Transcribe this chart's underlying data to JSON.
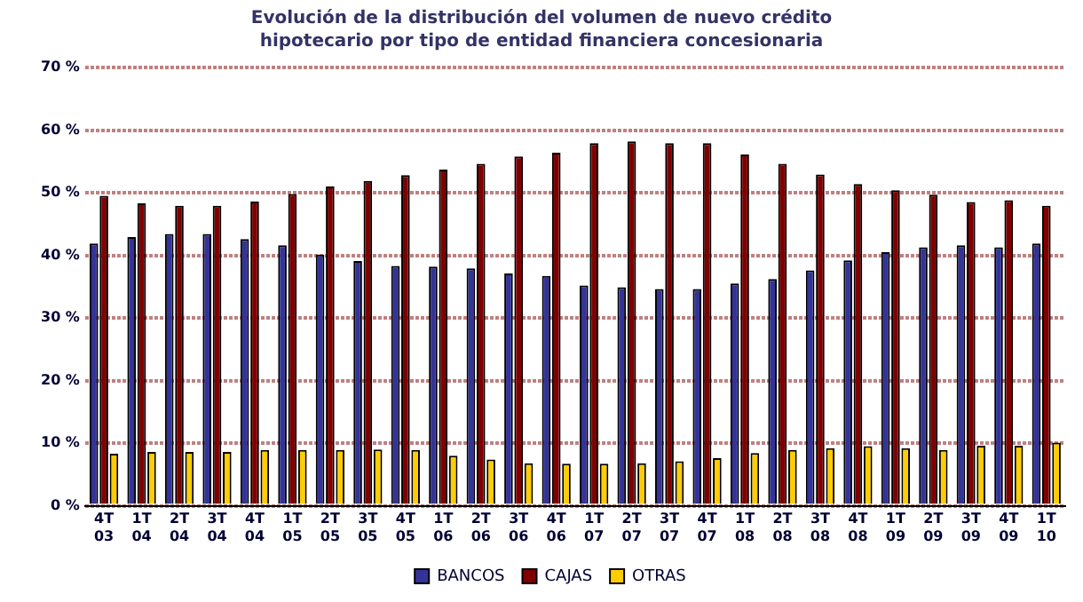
{
  "chart_data": {
    "type": "bar",
    "title": "Evolución de la distribución del volumen de nuevo crédito hipotecario por tipo de entidad financiera concesionaria",
    "categories": [
      "4T 03",
      "1T 04",
      "2T 04",
      "3T 04",
      "4T 04",
      "1T 05",
      "2T 05",
      "3T 05",
      "4T 05",
      "1T 06",
      "2T 06",
      "3T 06",
      "4T 06",
      "1T 07",
      "2T 07",
      "3T 07",
      "4T 07",
      "1T 08",
      "2T 08",
      "3T 08",
      "4T 08",
      "1T 09",
      "2T 09",
      "3T 09",
      "4T 09",
      "1T 10"
    ],
    "series": [
      {
        "name": "BANCOS",
        "color": "#333399",
        "values": [
          41.9,
          42.9,
          43.4,
          43.4,
          42.6,
          41.6,
          40.1,
          39.1,
          38.3,
          38.2,
          37.9,
          37.1,
          36.7,
          35.2,
          34.9,
          34.6,
          34.6,
          35.5,
          36.2,
          37.6,
          39.2,
          40.5,
          41.3,
          41.6,
          41.3,
          41.9
        ]
      },
      {
        "name": "CAJAS",
        "color": "#800000",
        "values": [
          49.5,
          48.3,
          47.9,
          47.9,
          48.6,
          49.8,
          51.0,
          51.9,
          52.8,
          53.7,
          54.6,
          55.8,
          56.4,
          57.9,
          58.2,
          57.9,
          57.9,
          56.1,
          54.6,
          52.9,
          51.4,
          50.4,
          49.7,
          48.5,
          48.8,
          47.9
        ]
      },
      {
        "name": "OTRAS",
        "color": "#ffcc00",
        "values": [
          8.3,
          8.6,
          8.6,
          8.6,
          8.9,
          8.9,
          8.9,
          9.0,
          8.9,
          8.0,
          7.4,
          6.8,
          6.7,
          6.7,
          6.8,
          7.1,
          7.6,
          8.4,
          8.9,
          9.2,
          9.5,
          9.2,
          8.9,
          9.6,
          9.6,
          10.1
        ]
      }
    ],
    "ylim": [
      0,
      70
    ],
    "yticks": [
      {
        "value": 0,
        "label": "0 %"
      },
      {
        "value": 10,
        "label": "10 %"
      },
      {
        "value": 20,
        "label": "20 %"
      },
      {
        "value": 30,
        "label": "30 %"
      },
      {
        "value": 40,
        "label": "40 %"
      },
      {
        "value": 50,
        "label": "50 %"
      },
      {
        "value": 60,
        "label": "60 %"
      },
      {
        "value": 70,
        "label": "70 %"
      }
    ],
    "grid": "y",
    "legend": "bottom"
  }
}
